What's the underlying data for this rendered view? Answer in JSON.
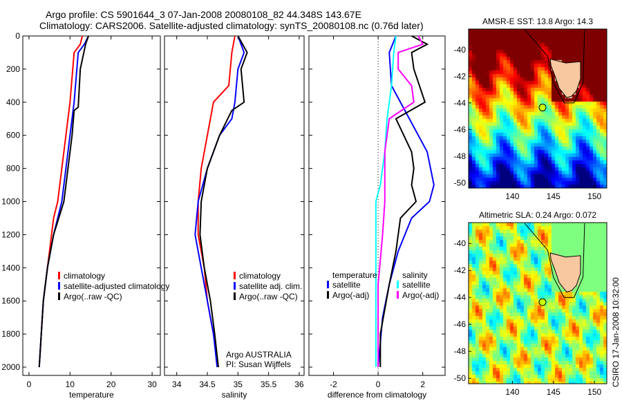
{
  "title_line1": "Argo profile: CS 5901644_3 07-Jan-2008 20080108_82 44.348S 143.67E",
  "title_line2": "Climatology: CARS2006. Satellite-adjusted climatology: synTS_20080108.nc (0.76d later)",
  "side_label": "CSIRO 17-Jan-2008 10:32:00",
  "chart_data": [
    {
      "type": "line",
      "xlabel": "temperature",
      "ylabel": "",
      "xlim": [
        -1.5,
        32
      ],
      "ylim": [
        2050,
        0
      ],
      "xticks": [
        0,
        10,
        20,
        30
      ],
      "yticks": [
        0,
        200,
        400,
        600,
        800,
        1000,
        1200,
        1400,
        1600,
        1800,
        2000
      ],
      "legend": [
        "climatology",
        "satellite-adjusted climatology",
        "Argo(..raw -QC)"
      ],
      "legend_placement": "lower-left",
      "series": [
        {
          "name": "climatology",
          "color": "#ff0000",
          "depth": [
            0,
            50,
            100,
            400,
            600,
            800,
            1000,
            1100,
            1200,
            1400,
            1600,
            1800,
            2000
          ],
          "values": [
            13,
            12.5,
            11,
            10,
            9,
            8,
            7,
            6,
            5.5,
            4.5,
            3.5,
            3,
            2.5
          ]
        },
        {
          "name": "satellite-adjusted climatology",
          "color": "#0000ff",
          "depth": [
            0,
            50,
            100,
            400,
            600,
            800,
            1000,
            1200,
            1400,
            1600,
            2000
          ],
          "values": [
            14.5,
            13.5,
            12,
            11,
            10,
            9,
            8,
            6,
            4.5,
            3.5,
            2.5
          ]
        },
        {
          "name": "Argo(..raw -QC)",
          "color": "#000000",
          "depth": [
            0,
            50,
            200,
            430,
            450,
            600,
            800,
            1000,
            1200,
            1400,
            1600,
            2000
          ],
          "values": [
            14.5,
            13.8,
            12.5,
            12,
            11,
            10.5,
            9.5,
            8.5,
            6,
            4.5,
            3.5,
            2.5
          ]
        }
      ]
    },
    {
      "type": "line",
      "xlabel": "salinity",
      "xlim": [
        33.8,
        36.08
      ],
      "ylim": [
        2050,
        0
      ],
      "xticks": [
        34,
        34.5,
        35,
        35.5,
        36
      ],
      "legend": [
        "climatology",
        "satellite adj. clim.",
        "Argo(..raw -QC)"
      ],
      "legend_placement": "lower-right",
      "annotation": [
        "Argo AUSTRALIA",
        "PI: Susan Wijffels"
      ],
      "series": [
        {
          "name": "climatology",
          "color": "#ff0000",
          "depth": [
            0,
            100,
            300,
            400,
            500,
            600,
            800,
            1000,
            1200,
            1400,
            1600,
            1800,
            2000
          ],
          "values": [
            34.95,
            34.9,
            34.85,
            34.6,
            34.55,
            34.5,
            34.4,
            34.35,
            34.35,
            34.45,
            34.5,
            34.6,
            34.68
          ]
        },
        {
          "name": "satellite adj. clim.",
          "color": "#0000ff",
          "depth": [
            0,
            100,
            200,
            400,
            500,
            600,
            800,
            1000,
            1200,
            1400,
            1600,
            1800,
            2000
          ],
          "values": [
            35.0,
            35.1,
            35.0,
            34.95,
            34.9,
            34.7,
            34.5,
            34.35,
            34.3,
            34.4,
            34.5,
            34.6,
            34.66
          ]
        },
        {
          "name": "Argo(..raw -QC)",
          "color": "#000000",
          "depth": [
            0,
            100,
            200,
            400,
            450,
            600,
            800,
            1000,
            1200,
            1400,
            1600,
            1800,
            2000
          ],
          "values": [
            35.0,
            35.15,
            35.05,
            35.1,
            34.9,
            34.7,
            34.5,
            34.4,
            34.38,
            34.45,
            34.55,
            34.62,
            34.68
          ]
        }
      ]
    },
    {
      "type": "line",
      "xlabel": "difference from climatology",
      "xlim": [
        -3.1,
        3.0
      ],
      "ylim": [
        2050,
        0
      ],
      "xticks": [
        -2,
        0,
        2
      ],
      "legend_headers": [
        "temperature",
        "salinity"
      ],
      "legend": [
        "satellite",
        "Argo(-adj)",
        "satellite",
        "Argo(-adj)"
      ],
      "legend_placement": "lower-center",
      "series": [
        {
          "name": "temperature satellite",
          "color": "#0000ff",
          "depth": [
            0,
            100,
            300,
            500,
            700,
            900,
            1000,
            1100,
            1300,
            1500,
            1700,
            2000
          ],
          "values": [
            0.8,
            0.5,
            0.6,
            1.4,
            2.2,
            2.5,
            2.3,
            1.5,
            0.9,
            0.5,
            0.2,
            0
          ]
        },
        {
          "name": "temperature Argo(-adj)",
          "color": "#000000",
          "depth": [
            0,
            50,
            100,
            200,
            400,
            500,
            700,
            800,
            900,
            1000,
            1100,
            1300,
            1500,
            1800,
            2000
          ],
          "values": [
            1.5,
            2.2,
            1.5,
            1.6,
            2.1,
            0.8,
            1.5,
            1.6,
            1.5,
            1.7,
            1.0,
            0.8,
            0.5,
            0.1,
            0.1
          ]
        },
        {
          "name": "salinity satellite",
          "color": "#00ffff",
          "depth": [
            0,
            100,
            300,
            500,
            700,
            900,
            1000,
            1200,
            1500,
            2000
          ],
          "values": [
            0.8,
            0.7,
            0.6,
            0.4,
            0.3,
            0.1,
            -0.1,
            -0.1,
            -0.1,
            -0.1
          ]
        },
        {
          "name": "salinity Argo(-adj)",
          "color": "#ff00ff",
          "depth": [
            0,
            50,
            100,
            200,
            300,
            400,
            500,
            700,
            900,
            1000,
            1200,
            1500,
            2000
          ],
          "values": [
            1.8,
            2.0,
            0.9,
            0.9,
            1.5,
            1.6,
            0.5,
            0.3,
            0.3,
            0.3,
            0.2,
            0,
            0
          ]
        }
      ]
    },
    {
      "type": "heatmap",
      "title": "AMSR-E SST: 13.8 Argo: 14.3",
      "xlim": [
        134.66,
        151.5
      ],
      "ylim": [
        -50.4,
        -38.45
      ],
      "xticks": [
        140,
        145,
        150
      ],
      "yticks": [
        -40,
        -42,
        -44,
        -46,
        -48,
        -50
      ],
      "argo": [
        143.67,
        -44.35
      ],
      "field": "sst"
    },
    {
      "type": "heatmap",
      "title": "Altimetric SLA: 0.24 Argo: 0.072",
      "xlim": [
        134.66,
        151.5
      ],
      "ylim": [
        -50.4,
        -38.45
      ],
      "xticks": [
        140,
        145,
        150
      ],
      "yticks": [
        -40,
        -42,
        -44,
        -46,
        -48,
        -50
      ],
      "argo": [
        143.67,
        -44.35
      ],
      "field": "sla"
    }
  ]
}
